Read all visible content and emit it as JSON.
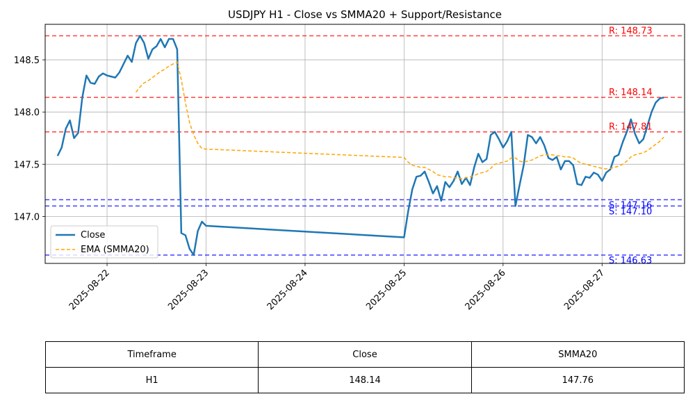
{
  "chart_data": {
    "type": "line",
    "title": "USDJPY H1 - Close vs SMMA20 + Support/Resistance",
    "xlabel": "",
    "ylabel": "",
    "x_ticks": [
      "2025-08-22",
      "2025-08-23",
      "2025-08-24",
      "2025-08-25",
      "2025-08-26",
      "2025-08-27"
    ],
    "xlim": [
      "2025-08-21 09:00",
      "2025-08-27 20:00"
    ],
    "y_ticks": [
      "147.0",
      "147.5",
      "148.0",
      "148.5"
    ],
    "ylim": [
      146.55,
      148.84
    ],
    "grid": true,
    "legend_position": "lower-left",
    "series": [
      {
        "name": "Close",
        "color": "#1f77b4",
        "style": "solid",
        "points": [
          [
            "2025-08-21 12:00",
            147.58
          ],
          [
            "2025-08-21 13:00",
            147.66
          ],
          [
            "2025-08-21 14:00",
            147.84
          ],
          [
            "2025-08-21 15:00",
            147.92
          ],
          [
            "2025-08-21 16:00",
            147.75
          ],
          [
            "2025-08-21 17:00",
            147.8
          ],
          [
            "2025-08-21 18:00",
            148.14
          ],
          [
            "2025-08-21 19:00",
            148.35
          ],
          [
            "2025-08-21 20:00",
            148.28
          ],
          [
            "2025-08-21 21:00",
            148.27
          ],
          [
            "2025-08-21 22:00",
            148.34
          ],
          [
            "2025-08-21 23:00",
            148.37
          ],
          [
            "2025-08-22 00:00",
            148.35
          ],
          [
            "2025-08-22 01:00",
            148.34
          ],
          [
            "2025-08-22 02:00",
            148.33
          ],
          [
            "2025-08-22 03:00",
            148.38
          ],
          [
            "2025-08-22 04:00",
            148.46
          ],
          [
            "2025-08-22 05:00",
            148.54
          ],
          [
            "2025-08-22 06:00",
            148.48
          ],
          [
            "2025-08-22 07:00",
            148.66
          ],
          [
            "2025-08-22 08:00",
            148.73
          ],
          [
            "2025-08-22 09:00",
            148.66
          ],
          [
            "2025-08-22 10:00",
            148.51
          ],
          [
            "2025-08-22 11:00",
            148.6
          ],
          [
            "2025-08-22 12:00",
            148.63
          ],
          [
            "2025-08-22 13:00",
            148.7
          ],
          [
            "2025-08-22 14:00",
            148.62
          ],
          [
            "2025-08-22 15:00",
            148.7
          ],
          [
            "2025-08-22 16:00",
            148.7
          ],
          [
            "2025-08-22 17:00",
            148.6
          ],
          [
            "2025-08-22 18:00",
            146.84
          ],
          [
            "2025-08-22 19:00",
            146.82
          ],
          [
            "2025-08-22 20:00",
            146.69
          ],
          [
            "2025-08-22 21:00",
            146.63
          ],
          [
            "2025-08-22 22:00",
            146.86
          ],
          [
            "2025-08-22 23:00",
            146.95
          ],
          [
            "2025-08-23 00:00",
            146.91
          ],
          [
            "2025-08-25 00:00",
            146.8
          ],
          [
            "2025-08-25 01:00",
            147.05
          ],
          [
            "2025-08-25 02:00",
            147.26
          ],
          [
            "2025-08-25 03:00",
            147.38
          ],
          [
            "2025-08-25 04:00",
            147.39
          ],
          [
            "2025-08-25 05:00",
            147.43
          ],
          [
            "2025-08-25 06:00",
            147.33
          ],
          [
            "2025-08-25 07:00",
            147.22
          ],
          [
            "2025-08-25 08:00",
            147.29
          ],
          [
            "2025-08-25 09:00",
            147.15
          ],
          [
            "2025-08-25 10:00",
            147.33
          ],
          [
            "2025-08-25 11:00",
            147.28
          ],
          [
            "2025-08-25 12:00",
            147.34
          ],
          [
            "2025-08-25 13:00",
            147.43
          ],
          [
            "2025-08-25 14:00",
            147.31
          ],
          [
            "2025-08-25 15:00",
            147.37
          ],
          [
            "2025-08-25 16:00",
            147.3
          ],
          [
            "2025-08-25 17:00",
            147.47
          ],
          [
            "2025-08-25 18:00",
            147.6
          ],
          [
            "2025-08-25 19:00",
            147.52
          ],
          [
            "2025-08-25 20:00",
            147.55
          ],
          [
            "2025-08-25 21:00",
            147.78
          ],
          [
            "2025-08-25 22:00",
            147.81
          ],
          [
            "2025-08-25 23:00",
            147.74
          ],
          [
            "2025-08-26 00:00",
            147.66
          ],
          [
            "2025-08-26 01:00",
            147.72
          ],
          [
            "2025-08-26 02:00",
            147.81
          ],
          [
            "2025-08-26 03:00",
            147.1
          ],
          [
            "2025-08-26 04:00",
            147.3
          ],
          [
            "2025-08-26 05:00",
            147.49
          ],
          [
            "2025-08-26 06:00",
            147.78
          ],
          [
            "2025-08-26 07:00",
            147.76
          ],
          [
            "2025-08-26 08:00",
            147.7
          ],
          [
            "2025-08-26 09:00",
            147.76
          ],
          [
            "2025-08-26 10:00",
            147.68
          ],
          [
            "2025-08-26 11:00",
            147.56
          ],
          [
            "2025-08-26 12:00",
            147.54
          ],
          [
            "2025-08-26 13:00",
            147.57
          ],
          [
            "2025-08-26 14:00",
            147.45
          ],
          [
            "2025-08-26 15:00",
            147.53
          ],
          [
            "2025-08-26 16:00",
            147.53
          ],
          [
            "2025-08-26 17:00",
            147.49
          ],
          [
            "2025-08-26 18:00",
            147.31
          ],
          [
            "2025-08-26 19:00",
            147.3
          ],
          [
            "2025-08-26 20:00",
            147.38
          ],
          [
            "2025-08-26 21:00",
            147.37
          ],
          [
            "2025-08-26 22:00",
            147.42
          ],
          [
            "2025-08-26 23:00",
            147.4
          ],
          [
            "2025-08-27 00:00",
            147.34
          ],
          [
            "2025-08-27 01:00",
            147.42
          ],
          [
            "2025-08-27 02:00",
            147.45
          ],
          [
            "2025-08-27 03:00",
            147.57
          ],
          [
            "2025-08-27 04:00",
            147.59
          ],
          [
            "2025-08-27 05:00",
            147.71
          ],
          [
            "2025-08-27 06:00",
            147.81
          ],
          [
            "2025-08-27 07:00",
            147.93
          ],
          [
            "2025-08-27 08:00",
            147.79
          ],
          [
            "2025-08-27 09:00",
            147.7
          ],
          [
            "2025-08-27 10:00",
            147.74
          ],
          [
            "2025-08-27 11:00",
            147.87
          ],
          [
            "2025-08-27 12:00",
            148.0
          ],
          [
            "2025-08-27 13:00",
            148.09
          ],
          [
            "2025-08-27 14:00",
            148.13
          ],
          [
            "2025-08-27 15:00",
            148.14
          ]
        ]
      },
      {
        "name": "EMA (SMMA20)",
        "color": "#ffa500",
        "style": "dashed",
        "points": [
          [
            "2025-08-22 07:00",
            148.19
          ],
          [
            "2025-08-22 08:00",
            148.24
          ],
          [
            "2025-08-22 09:00",
            148.28
          ],
          [
            "2025-08-22 10:00",
            148.3
          ],
          [
            "2025-08-22 11:00",
            148.33
          ],
          [
            "2025-08-22 12:00",
            148.36
          ],
          [
            "2025-08-22 13:00",
            148.39
          ],
          [
            "2025-08-22 14:00",
            148.41
          ],
          [
            "2025-08-22 15:00",
            148.44
          ],
          [
            "2025-08-22 16:00",
            148.46
          ],
          [
            "2025-08-22 17:00",
            148.48
          ],
          [
            "2025-08-22 18:00",
            148.31
          ],
          [
            "2025-08-22 19:00",
            148.09
          ],
          [
            "2025-08-22 20:00",
            147.9
          ],
          [
            "2025-08-22 21:00",
            147.78
          ],
          [
            "2025-08-22 22:00",
            147.7
          ],
          [
            "2025-08-22 23:00",
            147.65
          ],
          [
            "2025-08-23 00:00",
            147.645
          ],
          [
            "2025-08-25 00:00",
            147.565
          ],
          [
            "2025-08-25 01:00",
            147.52
          ],
          [
            "2025-08-25 02:00",
            147.49
          ],
          [
            "2025-08-25 03:00",
            147.48
          ],
          [
            "2025-08-25 04:00",
            147.47
          ],
          [
            "2025-08-25 05:00",
            147.47
          ],
          [
            "2025-08-25 06:00",
            147.45
          ],
          [
            "2025-08-25 07:00",
            147.43
          ],
          [
            "2025-08-25 08:00",
            147.4
          ],
          [
            "2025-08-25 09:00",
            147.39
          ],
          [
            "2025-08-25 10:00",
            147.38
          ],
          [
            "2025-08-25 11:00",
            147.38
          ],
          [
            "2025-08-25 12:00",
            147.37
          ],
          [
            "2025-08-25 13:00",
            147.37
          ],
          [
            "2025-08-25 14:00",
            147.36
          ],
          [
            "2025-08-25 15:00",
            147.37
          ],
          [
            "2025-08-25 16:00",
            147.38
          ],
          [
            "2025-08-25 17:00",
            147.39
          ],
          [
            "2025-08-25 18:00",
            147.41
          ],
          [
            "2025-08-25 19:00",
            147.42
          ],
          [
            "2025-08-25 20:00",
            147.43
          ],
          [
            "2025-08-25 21:00",
            147.46
          ],
          [
            "2025-08-25 22:00",
            147.5
          ],
          [
            "2025-08-25 23:00",
            147.51
          ],
          [
            "2025-08-26 00:00",
            147.52
          ],
          [
            "2025-08-26 01:00",
            147.53
          ],
          [
            "2025-08-26 02:00",
            147.56
          ],
          [
            "2025-08-26 03:00",
            147.56
          ],
          [
            "2025-08-26 04:00",
            147.53
          ],
          [
            "2025-08-26 05:00",
            147.52
          ],
          [
            "2025-08-26 06:00",
            147.53
          ],
          [
            "2025-08-26 07:00",
            147.54
          ],
          [
            "2025-08-26 08:00",
            147.56
          ],
          [
            "2025-08-26 09:00",
            147.58
          ],
          [
            "2025-08-26 10:00",
            147.59
          ],
          [
            "2025-08-26 11:00",
            147.59
          ],
          [
            "2025-08-26 12:00",
            147.59
          ],
          [
            "2025-08-26 13:00",
            147.58
          ],
          [
            "2025-08-26 14:00",
            147.58
          ],
          [
            "2025-08-26 15:00",
            147.57
          ],
          [
            "2025-08-26 16:00",
            147.57
          ],
          [
            "2025-08-26 17:00",
            147.56
          ],
          [
            "2025-08-26 18:00",
            147.53
          ],
          [
            "2025-08-26 19:00",
            147.51
          ],
          [
            "2025-08-26 20:00",
            147.5
          ],
          [
            "2025-08-26 21:00",
            147.49
          ],
          [
            "2025-08-26 22:00",
            147.48
          ],
          [
            "2025-08-26 23:00",
            147.47
          ],
          [
            "2025-08-27 00:00",
            147.46
          ],
          [
            "2025-08-27 01:00",
            147.455
          ],
          [
            "2025-08-27 02:00",
            147.46
          ],
          [
            "2025-08-27 03:00",
            147.47
          ],
          [
            "2025-08-27 04:00",
            147.48
          ],
          [
            "2025-08-27 05:00",
            147.5
          ],
          [
            "2025-08-27 06:00",
            147.53
          ],
          [
            "2025-08-27 07:00",
            147.57
          ],
          [
            "2025-08-27 08:00",
            147.59
          ],
          [
            "2025-08-27 09:00",
            147.6
          ],
          [
            "2025-08-27 10:00",
            147.61
          ],
          [
            "2025-08-27 11:00",
            147.63
          ],
          [
            "2025-08-27 12:00",
            147.66
          ],
          [
            "2025-08-27 13:00",
            147.69
          ],
          [
            "2025-08-27 14:00",
            147.72
          ],
          [
            "2025-08-27 15:00",
            147.76
          ]
        ]
      }
    ],
    "levels": [
      {
        "kind": "resistance",
        "value": 148.73,
        "label": "R: 148.73",
        "color": "#ff0000"
      },
      {
        "kind": "resistance",
        "value": 148.14,
        "label": "R: 148.14",
        "color": "#ff0000"
      },
      {
        "kind": "resistance",
        "value": 147.81,
        "label": "R: 147.81",
        "color": "#ff0000"
      },
      {
        "kind": "support",
        "value": 147.16,
        "label": "S: 147.16",
        "color": "#0000ff"
      },
      {
        "kind": "support",
        "value": 147.1,
        "label": "S: 147.10",
        "color": "#0000ff"
      },
      {
        "kind": "support",
        "value": 146.63,
        "label": "S: 146.63",
        "color": "#0000ff"
      }
    ]
  },
  "table": {
    "headers": [
      "Timeframe",
      "Close",
      "SMMA20"
    ],
    "rows": [
      [
        "H1",
        "148.14",
        "147.76"
      ]
    ]
  }
}
